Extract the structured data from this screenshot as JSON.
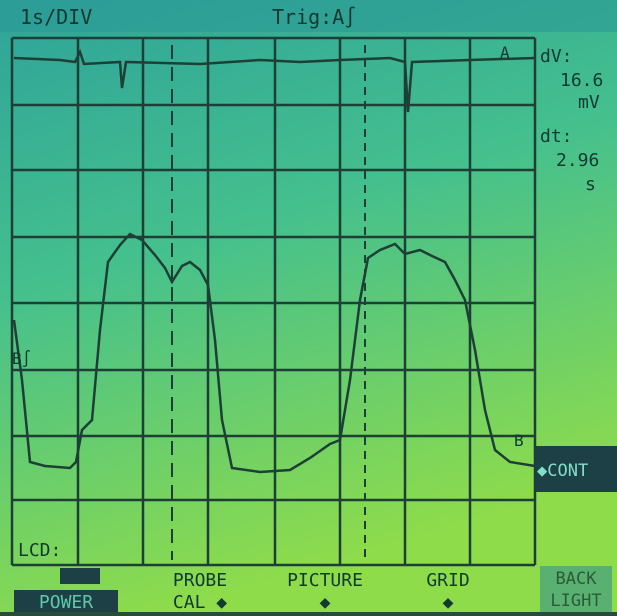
{
  "header": {
    "timebase": "1s/DIV",
    "trigger": "Trig:A∫"
  },
  "readout": {
    "dv_label": "dV:",
    "dv_value": "16.6",
    "dv_unit": "mV",
    "dt_label": "dt:",
    "dt_value": "2.96",
    "dt_unit": "s"
  },
  "markers": {
    "trace_a": "A",
    "trace_b_level": "B∫",
    "trace_b": "B"
  },
  "side": {
    "cont": "◆CONT"
  },
  "status": {
    "lcd": "LCD:"
  },
  "menu": [
    {
      "line1": "",
      "line2": "POWER"
    },
    {
      "line1": "PROBE",
      "line2": "CAL ◆"
    },
    {
      "line1": "PICTURE",
      "line2": "◆"
    },
    {
      "line1": "GRID",
      "line2": "◆"
    },
    {
      "line1": "BACK",
      "line2": "LIGHT"
    }
  ]
}
